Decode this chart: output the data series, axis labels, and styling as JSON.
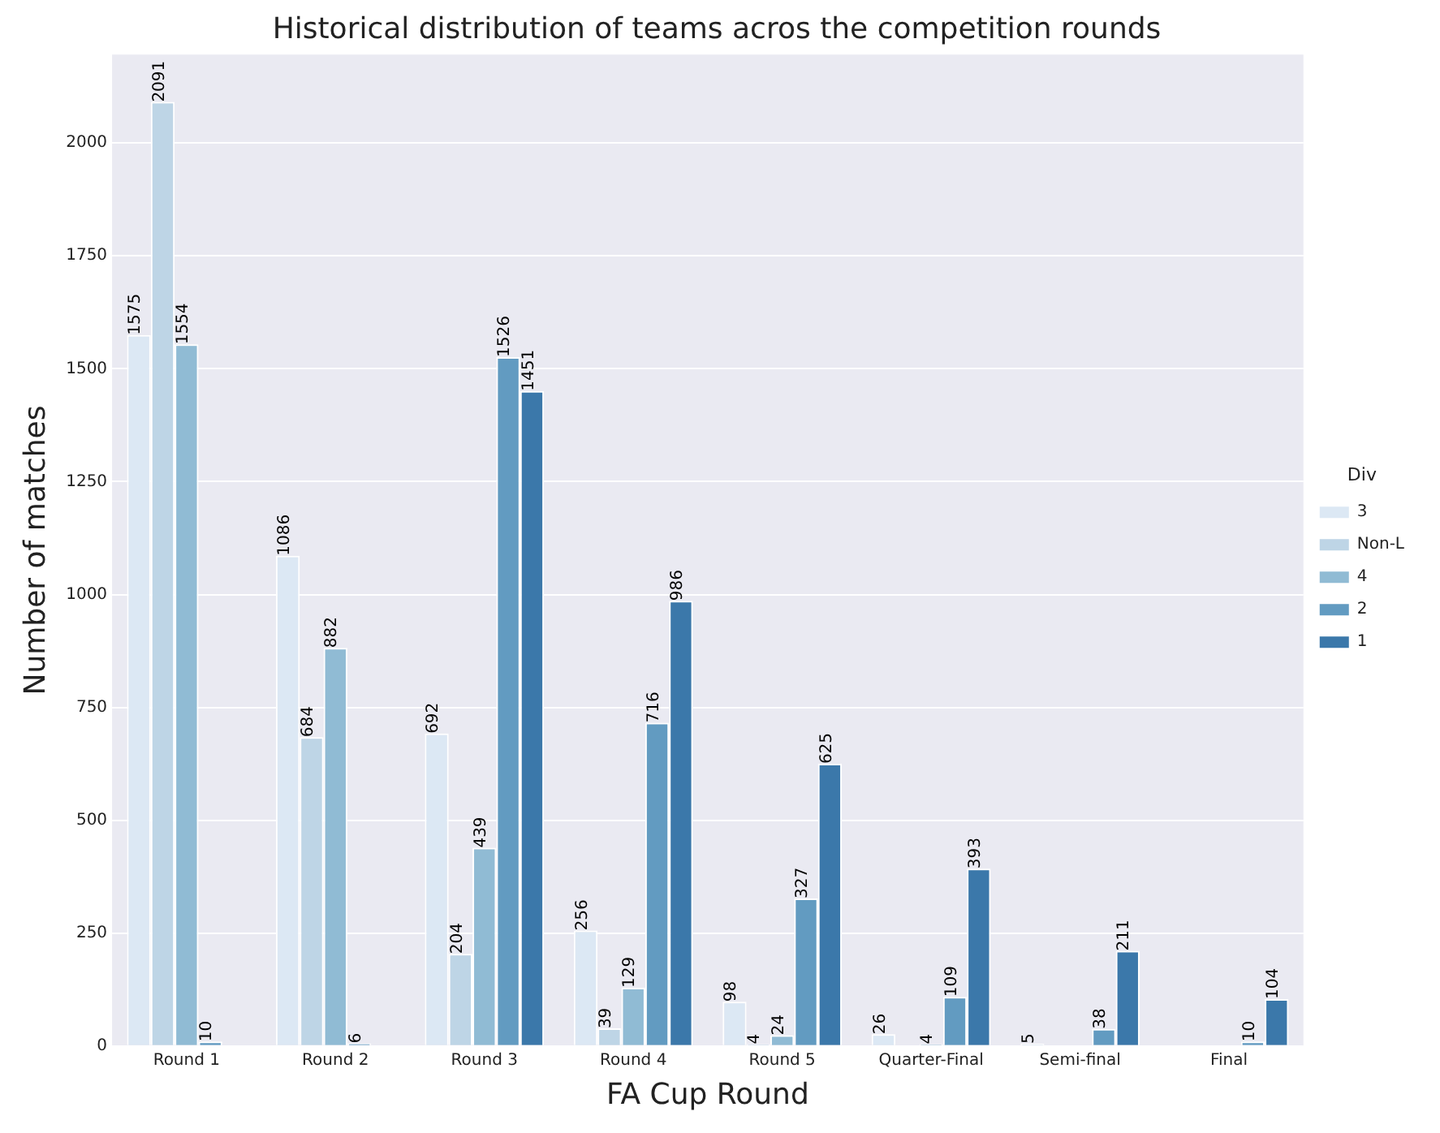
{
  "chart_data": {
    "type": "bar",
    "title": "Historical distribution of teams acros the competition rounds",
    "xlabel": "FA Cup Round",
    "ylabel": "Number of matches",
    "legend_title": "Div",
    "categories": [
      "Round 1",
      "Round 2",
      "Round 3",
      "Round 4",
      "Round 5",
      "Quarter-Final",
      "Semi-final",
      "Final"
    ],
    "series": [
      {
        "name": "3",
        "color": "#dce8f4",
        "values": [
          1575,
          1086,
          692,
          256,
          98,
          26,
          5,
          null
        ]
      },
      {
        "name": "Non-L",
        "color": "#bed5e6",
        "values": [
          2091,
          684,
          204,
          39,
          4,
          null,
          null,
          null
        ]
      },
      {
        "name": "4",
        "color": "#90bbd4",
        "values": [
          1554,
          882,
          439,
          129,
          24,
          4,
          null,
          null
        ]
      },
      {
        "name": "2",
        "color": "#629bc1",
        "values": [
          10,
          6,
          1526,
          716,
          327,
          109,
          38,
          10
        ]
      },
      {
        "name": "1",
        "color": "#3b78aa",
        "values": [
          null,
          null,
          1451,
          986,
          625,
          393,
          211,
          104
        ]
      }
    ],
    "ylim": [
      0,
      2196
    ],
    "yticks": [
      0,
      250,
      500,
      750,
      1000,
      1250,
      1500,
      1750,
      2000
    ],
    "grid": "y",
    "legend": "right",
    "data_labels": true
  }
}
